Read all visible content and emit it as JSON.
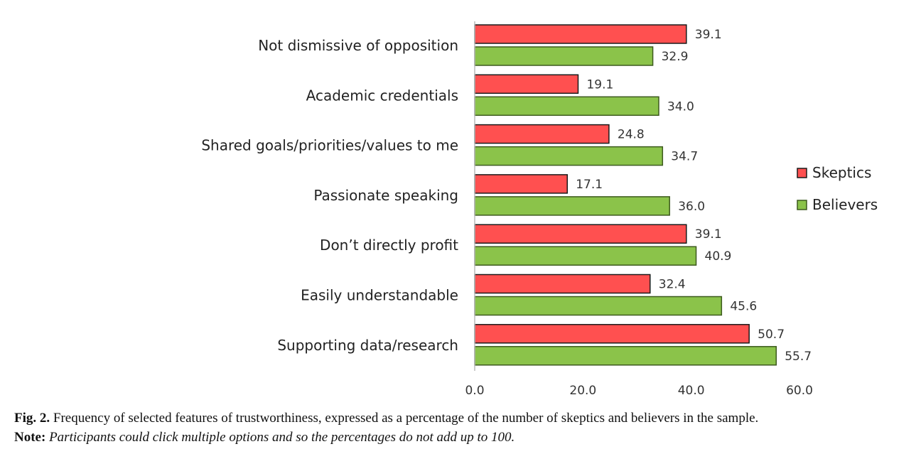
{
  "chart_data": {
    "type": "bar",
    "orientation": "horizontal",
    "categories": [
      "Not dismissive of opposition",
      "Academic credentials",
      "Shared goals/priorities/values to me",
      "Passionate speaking",
      "Don’t directly profit",
      "Easily understandable",
      "Supporting data/research"
    ],
    "series": [
      {
        "name": "Skeptics",
        "color": "#ff5050",
        "values": [
          39.1,
          19.1,
          24.8,
          17.1,
          39.1,
          32.4,
          50.7
        ]
      },
      {
        "name": "Believers",
        "color": "#8bc34a",
        "values": [
          32.9,
          34.0,
          34.7,
          36.0,
          40.9,
          45.6,
          55.7
        ]
      }
    ],
    "xlim": [
      0,
      60
    ],
    "xticks": [
      "0.0",
      "20.0",
      "40.0",
      "60.0"
    ],
    "xtick_values": [
      0,
      20,
      40,
      60
    ],
    "grid": false,
    "legend_position": "right",
    "title": "",
    "xlabel": "",
    "ylabel": ""
  },
  "caption": {
    "label": "Fig. 2.",
    "text": "Frequency of selected features of trustworthiness, expressed as a percentage of the number of skeptics and believers in the sample.",
    "note_label": "Note:",
    "note_text": "Participants could click multiple options and so the percentages do not add up to 100."
  }
}
